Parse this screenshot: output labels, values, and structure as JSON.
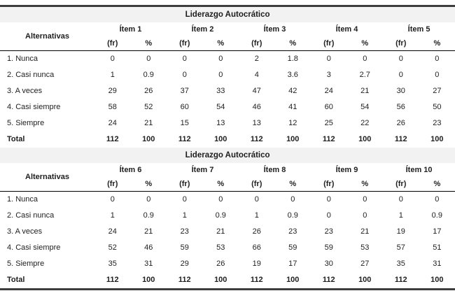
{
  "page": {
    "background_color": "#ffffff",
    "rule_color": "#3d3d3d",
    "band_color": "#f2f2f2"
  },
  "tables": [
    {
      "title": "Liderazgo Autocrático",
      "col_header": "Alternativas",
      "items": [
        "Ítem 1",
        "Ítem 2",
        "Ítem 3",
        "Ítem 4",
        "Ítem 5"
      ],
      "sub_headers": [
        "(fr)",
        "%"
      ],
      "rows": [
        {
          "label": "1. Nunca",
          "bold": false,
          "values": [
            "0",
            "0",
            "0",
            "0",
            "2",
            "1.8",
            "0",
            "0",
            "0",
            "0"
          ]
        },
        {
          "label": "2. Casi nunca",
          "bold": false,
          "values": [
            "1",
            "0.9",
            "0",
            "0",
            "4",
            "3.6",
            "3",
            "2.7",
            "0",
            "0"
          ]
        },
        {
          "label": "3. A veces",
          "bold": false,
          "values": [
            "29",
            "26",
            "37",
            "33",
            "47",
            "42",
            "24",
            "21",
            "30",
            "27"
          ]
        },
        {
          "label": "4. Casi siempre",
          "bold": false,
          "values": [
            "58",
            "52",
            "60",
            "54",
            "46",
            "41",
            "60",
            "54",
            "56",
            "50"
          ]
        },
        {
          "label": "5. Siempre",
          "bold": false,
          "values": [
            "24",
            "21",
            "15",
            "13",
            "13",
            "12",
            "25",
            "22",
            "26",
            "23"
          ]
        },
        {
          "label": "Total",
          "bold": true,
          "values": [
            "112",
            "100",
            "112",
            "100",
            "112",
            "100",
            "112",
            "100",
            "112",
            "100"
          ]
        }
      ]
    },
    {
      "title": "Liderazgo Autocrático",
      "col_header": "Alternativas",
      "items": [
        "Ítem 6",
        "Ítem 7",
        "Ítem 8",
        "Ítem 9",
        "Ítem 10"
      ],
      "sub_headers": [
        "(fr)",
        "%"
      ],
      "rows": [
        {
          "label": "1. Nunca",
          "bold": false,
          "values": [
            "0",
            "0",
            "0",
            "0",
            "0",
            "0",
            "0",
            "0",
            "0",
            "0"
          ]
        },
        {
          "label": "2. Casi nunca",
          "bold": false,
          "values": [
            "1",
            "0.9",
            "1",
            "0.9",
            "1",
            "0.9",
            "0",
            "0",
            "1",
            "0.9"
          ]
        },
        {
          "label": "3. A veces",
          "bold": false,
          "values": [
            "24",
            "21",
            "23",
            "21",
            "26",
            "23",
            "23",
            "21",
            "19",
            "17"
          ]
        },
        {
          "label": "4. Casi siempre",
          "bold": false,
          "values": [
            "52",
            "46",
            "59",
            "53",
            "66",
            "59",
            "59",
            "53",
            "57",
            "51"
          ]
        },
        {
          "label": "5. Siempre",
          "bold": false,
          "values": [
            "35",
            "31",
            "29",
            "26",
            "19",
            "17",
            "30",
            "27",
            "35",
            "31"
          ]
        },
        {
          "label": "Total",
          "bold": true,
          "values": [
            "112",
            "100",
            "112",
            "100",
            "112",
            "100",
            "112",
            "100",
            "112",
            "100"
          ]
        }
      ]
    }
  ]
}
